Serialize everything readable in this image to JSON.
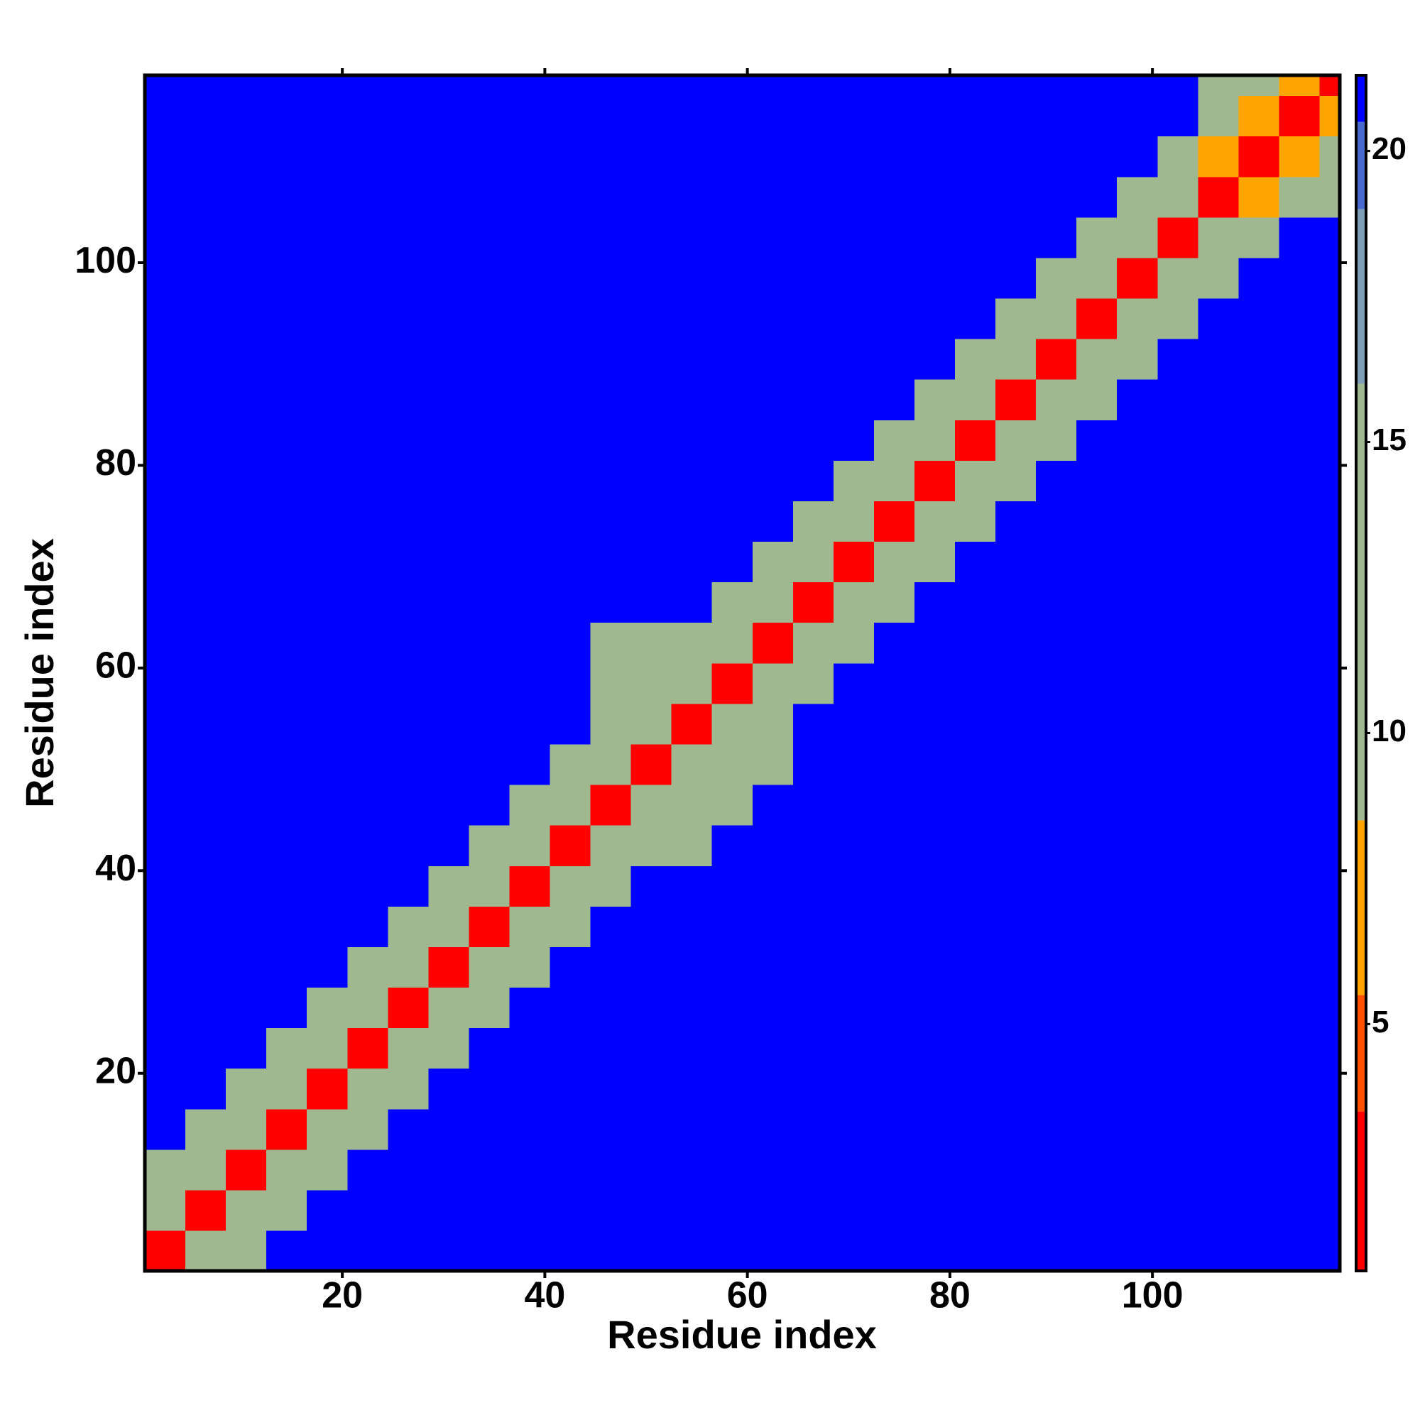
{
  "chart_data": {
    "type": "heatmap",
    "x_label": "Residue index",
    "y_label": "Residue index",
    "xlim": [
      0.5,
      118.5
    ],
    "ylim": [
      0.5,
      118.5
    ],
    "xticks": [
      20,
      40,
      60,
      80,
      100
    ],
    "yticks": [
      20,
      40,
      60,
      80,
      100
    ],
    "zlim": [
      0.76,
      21.3
    ],
    "zticks": [
      5,
      10,
      15,
      20
    ],
    "colorscale": [
      [
        0.76,
        "#ff0000"
      ],
      [
        3.5,
        "#ff5000"
      ],
      [
        5.5,
        "#ffa500"
      ],
      [
        8.5,
        "#9fb88f"
      ],
      [
        16,
        "#7f9fb8"
      ],
      [
        19,
        "#4a6ad0"
      ],
      [
        20.5,
        "#0000ff"
      ]
    ],
    "x": [
      2.5,
      6.5,
      10.5,
      14.5,
      18.5,
      22.5,
      26.5,
      30.5,
      34.5,
      38.5,
      42.5,
      46.5,
      50.5,
      54.5,
      58.5,
      62.5,
      66.5,
      70.5,
      74.5,
      78.5,
      82.5,
      86.5,
      90.5,
      94.5,
      98.5,
      102.5,
      106.5,
      110.5,
      114.5,
      118.5
    ],
    "y": [
      2.5,
      6.5,
      10.5,
      14.5,
      18.5,
      22.5,
      26.5,
      30.5,
      34.5,
      38.5,
      42.5,
      46.5,
      50.5,
      54.5,
      58.5,
      62.5,
      66.5,
      70.5,
      74.5,
      78.5,
      82.5,
      86.5,
      90.5,
      94.5,
      98.5,
      102.5,
      106.5,
      110.5,
      114.5,
      118.5
    ],
    "z": [
      [
        2,
        9,
        15,
        21,
        21,
        21,
        21,
        21,
        21,
        21,
        21,
        21,
        21,
        21,
        21,
        21,
        21,
        21,
        21,
        21,
        21,
        21,
        21,
        21,
        21,
        21,
        21,
        21,
        21,
        21
      ],
      [
        9,
        2,
        9,
        15,
        21,
        21,
        21,
        21,
        21,
        21,
        21,
        21,
        21,
        21,
        21,
        21,
        21,
        21,
        21,
        21,
        21,
        21,
        21,
        21,
        21,
        21,
        21,
        21,
        21,
        21
      ],
      [
        15,
        9,
        2,
        9,
        15,
        21,
        21,
        21,
        21,
        21,
        21,
        21,
        21,
        21,
        21,
        21,
        21,
        21,
        21,
        21,
        21,
        21,
        21,
        21,
        21,
        21,
        21,
        21,
        21,
        21
      ],
      [
        21,
        15,
        9,
        2,
        9,
        15,
        21,
        21,
        21,
        21,
        21,
        21,
        21,
        21,
        21,
        21,
        21,
        21,
        21,
        21,
        21,
        21,
        21,
        21,
        21,
        21,
        21,
        21,
        21,
        21
      ],
      [
        21,
        21,
        15,
        9,
        2,
        9,
        15,
        21,
        21,
        21,
        21,
        21,
        21,
        21,
        21,
        21,
        21,
        21,
        21,
        21,
        21,
        21,
        21,
        21,
        21,
        21,
        21,
        21,
        21,
        21
      ],
      [
        21,
        21,
        21,
        15,
        9,
        2,
        9,
        15,
        21,
        21,
        21,
        21,
        21,
        21,
        21,
        21,
        21,
        21,
        21,
        21,
        21,
        21,
        21,
        21,
        21,
        21,
        21,
        21,
        21,
        21
      ],
      [
        21,
        21,
        21,
        21,
        15,
        9,
        2,
        9,
        15,
        21,
        21,
        21,
        21,
        21,
        21,
        21,
        21,
        21,
        21,
        21,
        21,
        21,
        21,
        21,
        21,
        21,
        21,
        21,
        21,
        21
      ],
      [
        21,
        21,
        21,
        21,
        21,
        15,
        9,
        2,
        9,
        15,
        21,
        21,
        21,
        21,
        21,
        21,
        21,
        21,
        21,
        21,
        21,
        21,
        21,
        21,
        21,
        21,
        21,
        21,
        21,
        21
      ],
      [
        21,
        21,
        21,
        21,
        21,
        21,
        15,
        9,
        2,
        9,
        15,
        21,
        21,
        21,
        21,
        21,
        21,
        21,
        21,
        21,
        21,
        21,
        21,
        21,
        21,
        21,
        21,
        21,
        21,
        21
      ],
      [
        21,
        21,
        21,
        21,
        21,
        21,
        21,
        15,
        9,
        2,
        9,
        15,
        21,
        21,
        21,
        21,
        21,
        21,
        21,
        21,
        21,
        21,
        21,
        21,
        21,
        21,
        21,
        21,
        21,
        21
      ],
      [
        21,
        21,
        21,
        21,
        21,
        21,
        21,
        21,
        15,
        9,
        2,
        9,
        15,
        14,
        21,
        21,
        21,
        21,
        21,
        21,
        21,
        21,
        21,
        21,
        21,
        21,
        21,
        21,
        21,
        21
      ],
      [
        21,
        21,
        21,
        21,
        21,
        21,
        21,
        21,
        21,
        15,
        9,
        2,
        9,
        12,
        12,
        21,
        21,
        21,
        21,
        21,
        21,
        21,
        21,
        21,
        21,
        21,
        21,
        21,
        21,
        21
      ],
      [
        21,
        21,
        21,
        21,
        21,
        21,
        21,
        21,
        21,
        21,
        15,
        9,
        2,
        9,
        11,
        13,
        21,
        21,
        21,
        21,
        21,
        21,
        21,
        21,
        21,
        21,
        21,
        21,
        21,
        21
      ],
      [
        21,
        21,
        21,
        21,
        21,
        21,
        21,
        21,
        21,
        21,
        21,
        13,
        9,
        2,
        9,
        12,
        21,
        21,
        21,
        21,
        21,
        21,
        21,
        21,
        21,
        21,
        21,
        21,
        21,
        21
      ],
      [
        21,
        21,
        21,
        21,
        21,
        21,
        21,
        21,
        21,
        21,
        21,
        12,
        12,
        9,
        2,
        9,
        15,
        21,
        21,
        21,
        21,
        21,
        21,
        21,
        21,
        21,
        21,
        21,
        21,
        21
      ],
      [
        21,
        21,
        21,
        21,
        21,
        21,
        21,
        21,
        21,
        21,
        21,
        13,
        12,
        15,
        9,
        2,
        9,
        15,
        21,
        21,
        21,
        21,
        21,
        21,
        21,
        21,
        21,
        21,
        21,
        21
      ],
      [
        21,
        21,
        21,
        21,
        21,
        21,
        21,
        21,
        21,
        21,
        21,
        21,
        21,
        21,
        15,
        9,
        2,
        9,
        15,
        21,
        21,
        21,
        21,
        21,
        21,
        21,
        21,
        21,
        21,
        21
      ],
      [
        21,
        21,
        21,
        21,
        21,
        21,
        21,
        21,
        21,
        21,
        21,
        21,
        21,
        21,
        21,
        15,
        9,
        2,
        9,
        15,
        21,
        21,
        21,
        21,
        21,
        21,
        21,
        21,
        21,
        21
      ],
      [
        21,
        21,
        21,
        21,
        21,
        21,
        21,
        21,
        21,
        21,
        21,
        21,
        21,
        21,
        21,
        21,
        15,
        9,
        2,
        9,
        15,
        21,
        21,
        21,
        21,
        21,
        21,
        21,
        21,
        21
      ],
      [
        21,
        21,
        21,
        21,
        21,
        21,
        21,
        21,
        21,
        21,
        21,
        21,
        21,
        21,
        21,
        21,
        21,
        15,
        9,
        2,
        9,
        15,
        21,
        21,
        21,
        21,
        21,
        21,
        21,
        21
      ],
      [
        21,
        21,
        21,
        21,
        21,
        21,
        21,
        21,
        21,
        21,
        21,
        21,
        21,
        21,
        21,
        21,
        21,
        21,
        15,
        9,
        2,
        9,
        15,
        21,
        21,
        21,
        21,
        21,
        21,
        21
      ],
      [
        21,
        21,
        21,
        21,
        21,
        21,
        21,
        21,
        21,
        21,
        21,
        21,
        21,
        21,
        21,
        21,
        21,
        21,
        21,
        15,
        9,
        2,
        9,
        15,
        21,
        21,
        21,
        21,
        21,
        21
      ],
      [
        21,
        21,
        21,
        21,
        21,
        21,
        21,
        21,
        21,
        21,
        21,
        21,
        21,
        21,
        21,
        21,
        21,
        21,
        21,
        21,
        15,
        9,
        2,
        9,
        15,
        21,
        21,
        21,
        21,
        21
      ],
      [
        21,
        21,
        21,
        21,
        21,
        21,
        21,
        21,
        21,
        21,
        21,
        21,
        21,
        21,
        21,
        21,
        21,
        21,
        21,
        21,
        21,
        15,
        9,
        2,
        9,
        15,
        21,
        21,
        21,
        21
      ],
      [
        21,
        21,
        21,
        21,
        21,
        21,
        21,
        21,
        21,
        21,
        21,
        21,
        21,
        21,
        21,
        21,
        21,
        21,
        21,
        21,
        21,
        21,
        15,
        9,
        2,
        9,
        15,
        21,
        21,
        21
      ],
      [
        21,
        21,
        21,
        21,
        21,
        21,
        21,
        21,
        21,
        21,
        21,
        21,
        21,
        21,
        21,
        21,
        21,
        21,
        21,
        21,
        21,
        21,
        21,
        15,
        9,
        2,
        9,
        15,
        21,
        21
      ],
      [
        21,
        21,
        21,
        21,
        21,
        21,
        21,
        21,
        21,
        21,
        21,
        21,
        21,
        21,
        21,
        21,
        21,
        21,
        21,
        21,
        21,
        21,
        21,
        21,
        15,
        9,
        2,
        7,
        9,
        12
      ],
      [
        21,
        21,
        21,
        21,
        21,
        21,
        21,
        21,
        21,
        21,
        21,
        21,
        21,
        21,
        21,
        21,
        21,
        21,
        21,
        21,
        21,
        21,
        21,
        21,
        21,
        15,
        7,
        2,
        7,
        9
      ],
      [
        21,
        21,
        21,
        21,
        21,
        21,
        21,
        21,
        21,
        21,
        21,
        21,
        21,
        21,
        21,
        21,
        21,
        21,
        21,
        21,
        21,
        21,
        21,
        21,
        21,
        21,
        9,
        7,
        2,
        7
      ],
      [
        21,
        21,
        21,
        21,
        21,
        21,
        21,
        21,
        21,
        21,
        21,
        21,
        21,
        21,
        21,
        21,
        21,
        21,
        21,
        21,
        21,
        21,
        21,
        21,
        21,
        21,
        12,
        9,
        7,
        2
      ]
    ]
  }
}
